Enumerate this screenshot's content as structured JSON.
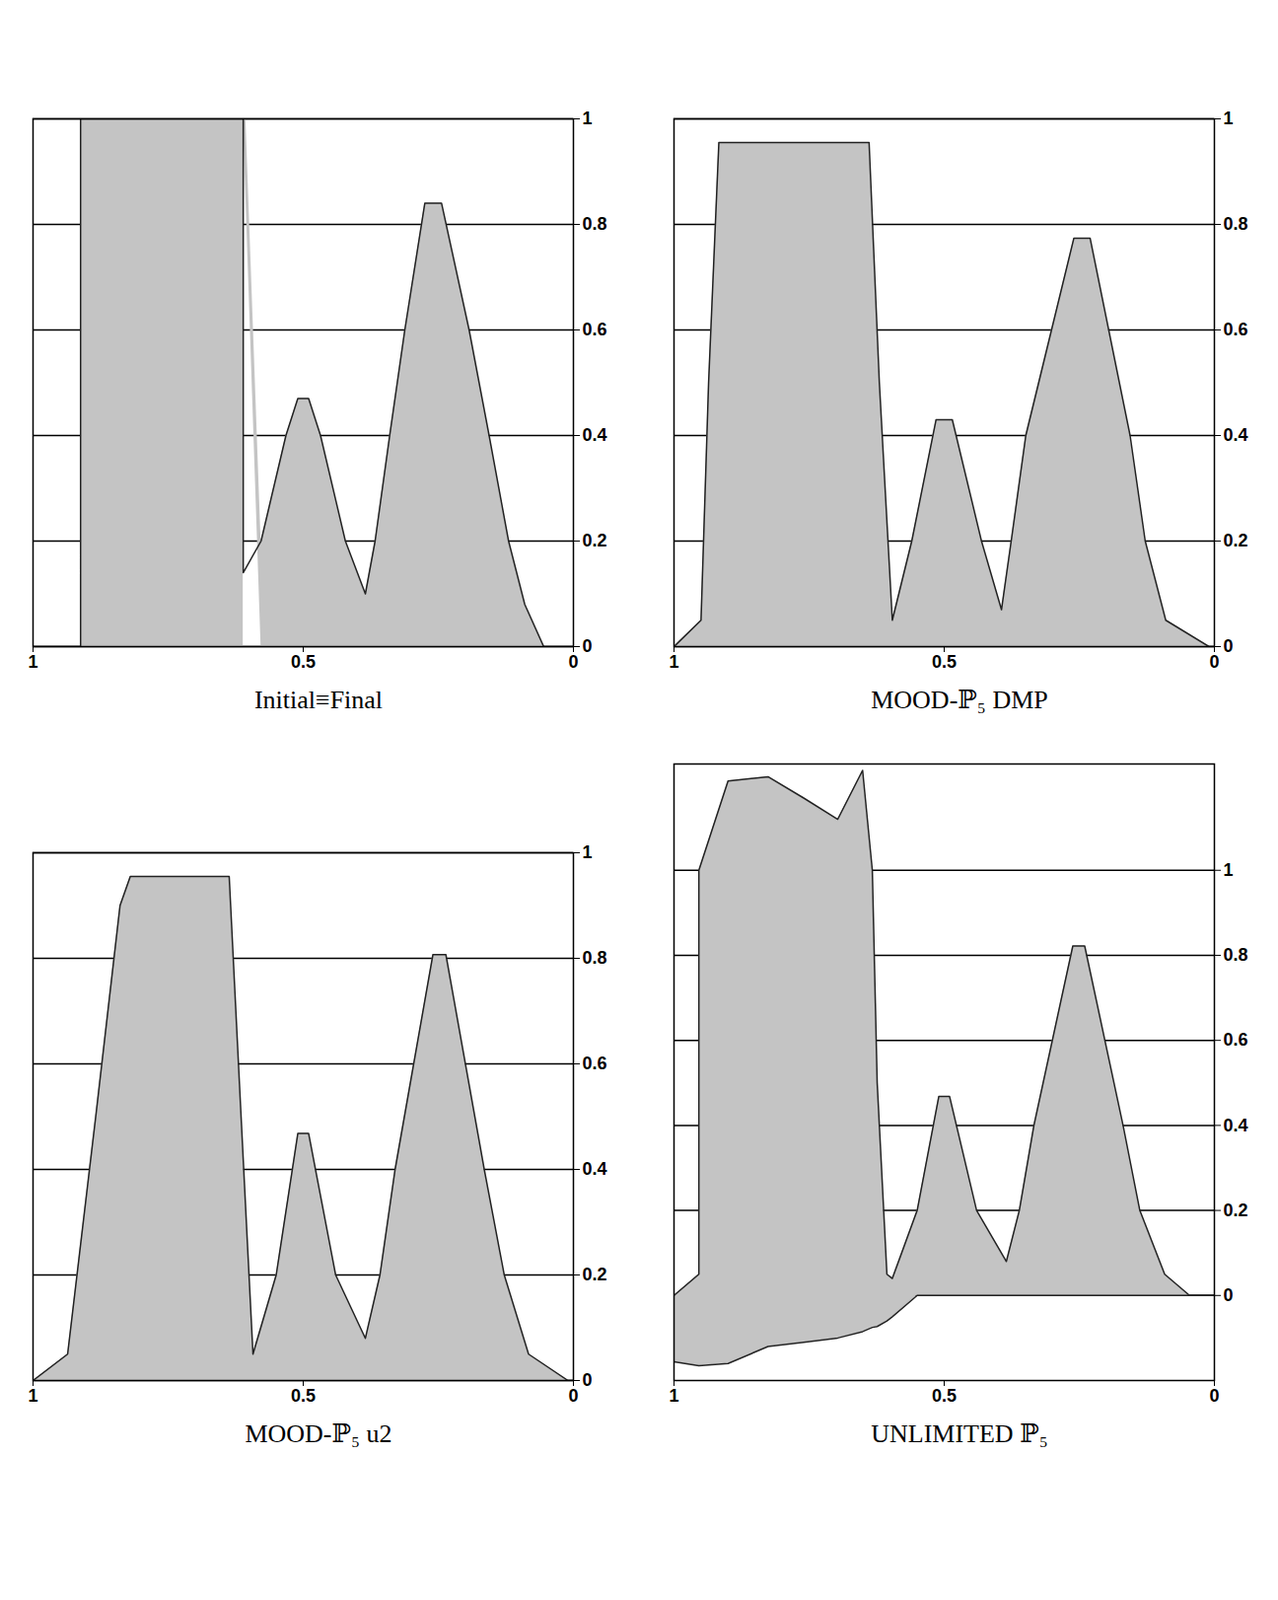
{
  "chart_data": [
    {
      "type": "area",
      "title": "Initial≡Final",
      "color": "#c4c4c4",
      "grid": true,
      "xlim": [
        1,
        0
      ],
      "xticks": [
        1,
        0.5,
        0
      ],
      "ylim": [
        0,
        1
      ],
      "yticks": [
        0,
        0.2,
        0.4,
        0.6,
        0.8,
        1
      ],
      "x": [
        1,
        0.912,
        0.912,
        0.611,
        0.611,
        0.578,
        0.532,
        0.51,
        0.49,
        0.468,
        0.422,
        0.385,
        0.367,
        0.34,
        0.312,
        0.275,
        0.244,
        0.193,
        0.156,
        0.12,
        0.09,
        0.055,
        0
      ],
      "values": [
        0,
        0,
        1,
        1,
        0.14,
        0.2,
        0.4,
        0.47,
        0.47,
        0.4,
        0.2,
        0.1,
        0.2,
        0.4,
        0.6,
        0.84,
        0.84,
        0.6,
        0.4,
        0.2,
        0.08,
        0,
        0
      ]
    },
    {
      "type": "area",
      "title": "MOOD-ℙ₅ DMP",
      "color": "#c4c4c4",
      "grid": true,
      "xlim": [
        1,
        0
      ],
      "xticks": [
        1,
        0.5,
        0
      ],
      "ylim": [
        0,
        1
      ],
      "yticks": [
        0,
        0.2,
        0.4,
        0.6,
        0.8,
        1
      ],
      "x": [
        1,
        0.99,
        0.95,
        0.936,
        0.917,
        0.639,
        0.62,
        0.596,
        0.56,
        0.515,
        0.485,
        0.431,
        0.394,
        0.376,
        0.349,
        0.26,
        0.23,
        0.156,
        0.128,
        0.09,
        0.01,
        0
      ],
      "values": [
        0,
        0.01,
        0.05,
        0.5,
        0.955,
        0.955,
        0.5,
        0.05,
        0.2,
        0.43,
        0.43,
        0.2,
        0.07,
        0.2,
        0.4,
        0.774,
        0.774,
        0.4,
        0.2,
        0.05,
        0,
        0
      ]
    },
    {
      "type": "area",
      "title": "MOOD-ℙ₅ u2",
      "color": "#c4c4c4",
      "grid": true,
      "xlim": [
        1,
        0
      ],
      "xticks": [
        1,
        0.5,
        0
      ],
      "ylim": [
        0,
        1
      ],
      "yticks": [
        0,
        0.2,
        0.4,
        0.6,
        0.8,
        1
      ],
      "x": [
        1,
        0.936,
        0.884,
        0.839,
        0.82,
        0.637,
        0.615,
        0.593,
        0.55,
        0.51,
        0.49,
        0.44,
        0.385,
        0.358,
        0.33,
        0.26,
        0.236,
        0.165,
        0.128,
        0.083,
        0.01,
        0
      ],
      "values": [
        0,
        0.05,
        0.5,
        0.9,
        0.955,
        0.955,
        0.5,
        0.05,
        0.2,
        0.468,
        0.468,
        0.2,
        0.08,
        0.2,
        0.4,
        0.807,
        0.807,
        0.4,
        0.2,
        0.05,
        0,
        0
      ]
    },
    {
      "type": "area",
      "title": "UNLIMITED ℙ₅",
      "color": "#c4c4c4",
      "grid": true,
      "xlim": [
        1,
        0
      ],
      "xticks": [
        1,
        0.5,
        0
      ],
      "ylim": [
        -0.2,
        1.25
      ],
      "yticks": [
        0,
        0.2,
        0.4,
        0.6,
        0.8,
        1
      ],
      "x": [
        1,
        0.954,
        0.954,
        0.9,
        0.826,
        0.76,
        0.697,
        0.651,
        0.633,
        0.624,
        0.606,
        0.596,
        0.55,
        0.51,
        0.49,
        0.44,
        0.385,
        0.361,
        0.334,
        0.262,
        0.24,
        0.169,
        0.138,
        0.092,
        0.046,
        0
      ],
      "values": [
        0,
        0.05,
        1,
        1.21,
        1.22,
        1.17,
        1.12,
        1.235,
        1,
        0.5,
        0.05,
        0.04,
        0.2,
        0.468,
        0.468,
        0.2,
        0.08,
        0.2,
        0.4,
        0.822,
        0.822,
        0.4,
        0.2,
        0.05,
        0,
        0
      ],
      "lower": [
        -0.156,
        -0.165,
        -0.165,
        -0.16,
        -0.12,
        -0.11,
        -0.1,
        -0.085,
        -0.075,
        -0.073,
        -0.06,
        -0.05,
        0,
        0,
        0,
        0,
        0,
        0,
        0,
        0,
        0,
        0,
        0,
        0,
        0,
        0
      ]
    }
  ]
}
